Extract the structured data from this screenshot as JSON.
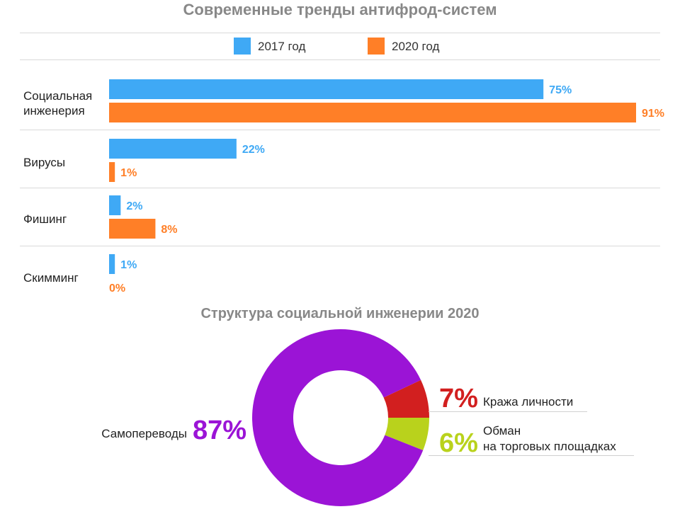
{
  "chart_data": [
    {
      "type": "bar",
      "title": "Современные тренды антифрод-систем",
      "categories": [
        "Социальная\nинженерия",
        "Вирусы",
        "Фишинг",
        "Скимминг"
      ],
      "series": [
        {
          "name": "2017 год",
          "values": [
            75,
            22,
            2,
            1
          ],
          "color": "#3fa9f5"
        },
        {
          "name": "2020 год",
          "values": [
            91,
            1,
            8,
            0
          ],
          "color": "#ff7f27"
        }
      ],
      "value_suffix": "%",
      "xlim": [
        0,
        91
      ],
      "legend_position": "top",
      "grid": false
    },
    {
      "type": "pie",
      "subtype": "donut",
      "title": "Структура социальной инженерии 2020",
      "slices": [
        {
          "label": "Самопереводы",
          "value": 87,
          "value_label": "87%",
          "color": "#9b14d6"
        },
        {
          "label": "Кража личности",
          "value": 7,
          "value_label": "7%",
          "color": "#d21f1f"
        },
        {
          "label": "Обман\nна торговых площадках",
          "value": 6,
          "value_label": "6%",
          "color": "#b9d21c"
        }
      ]
    }
  ]
}
